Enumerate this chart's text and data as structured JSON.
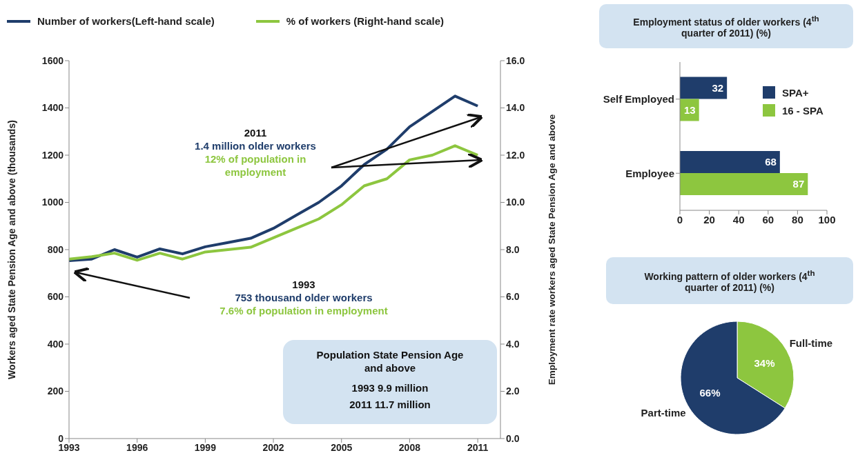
{
  "chart_data": [
    {
      "type": "line",
      "legend": "top",
      "x": [
        1993,
        1994,
        1995,
        1996,
        1997,
        1998,
        1999,
        2000,
        2001,
        2002,
        2003,
        2004,
        2005,
        2006,
        2007,
        2008,
        2009,
        2010,
        2011
      ],
      "xlim": [
        1993,
        2012
      ],
      "xticks": [
        1993,
        1996,
        1999,
        2002,
        2005,
        2008,
        2011
      ],
      "ylim": [
        0,
        1600
      ],
      "yticks": [
        0,
        200,
        400,
        600,
        800,
        1000,
        1200,
        1400,
        1600
      ],
      "y2lim": [
        0,
        16
      ],
      "y2ticks": [
        {
          "value": 0,
          "label": "0.0"
        },
        {
          "value": 2,
          "label": "2.0"
        },
        {
          "value": 4,
          "label": "4.0"
        },
        {
          "value": 6,
          "label": "6.0"
        },
        {
          "value": 8,
          "label": "8.0"
        },
        {
          "value": 10,
          "label": "10.0"
        },
        {
          "value": 12,
          "label": "12.0"
        },
        {
          "value": 14,
          "label": "14.0"
        },
        {
          "value": 16,
          "label": "16.0"
        }
      ],
      "ylabel": "Workers aged State Pension Age and above (thousands)",
      "y2label": "Employment rate workers aged State Pension Age and above",
      "series": [
        {
          "name": "Number of workers(Left-hand scale)",
          "color": "#1f3d6b",
          "values": [
            753,
            760,
            800,
            768,
            803,
            782,
            812,
            830,
            848,
            890,
            945,
            1000,
            1070,
            1160,
            1225,
            1320,
            1385,
            1450,
            1408
          ]
        },
        {
          "name": "% of workers (Right-hand scale)",
          "color": "#8dc63f",
          "axis": "y2",
          "values": [
            7.6,
            7.7,
            7.85,
            7.55,
            7.85,
            7.6,
            7.9,
            8.0,
            8.1,
            8.5,
            8.9,
            9.3,
            9.9,
            10.7,
            11.0,
            11.8,
            12.0,
            12.4,
            12.0
          ]
        }
      ],
      "annotations": [
        "2011",
        "1.4 million older workers",
        "12% of population in employment",
        "1993",
        "753 thousand older workers",
        "7.6% of population in employment",
        "Population State Pension Age and above",
        "1993 9.9 million",
        "2011 11.7 million"
      ]
    },
    {
      "type": "bar",
      "orientation": "horizontal",
      "title": "Employment status of older workers (4$^{th}$ quarter of 2011) (%)",
      "categories": [
        "Self Employed",
        "Employee"
      ],
      "xlim": [
        0,
        100
      ],
      "xticks": [
        0,
        20,
        40,
        60,
        80,
        100
      ],
      "legend": "right",
      "data_labels": true,
      "series": [
        {
          "name": "SPA+",
          "color": "#1f3d6b",
          "values": [
            32,
            68
          ]
        },
        {
          "name": "16 - SPA",
          "color": "#8dc63f",
          "values": [
            13,
            87
          ]
        }
      ]
    },
    {
      "type": "pie",
      "title": "Working pattern of older workers (4$^{th}$ quarter of 2011) (%)",
      "categories": [
        "Full-time",
        "Part-time"
      ],
      "values": [
        34,
        66
      ],
      "colors": [
        "#8dc63f",
        "#1f3d6b"
      ],
      "value_labels": [
        "34%",
        "66%"
      ]
    }
  ]
}
